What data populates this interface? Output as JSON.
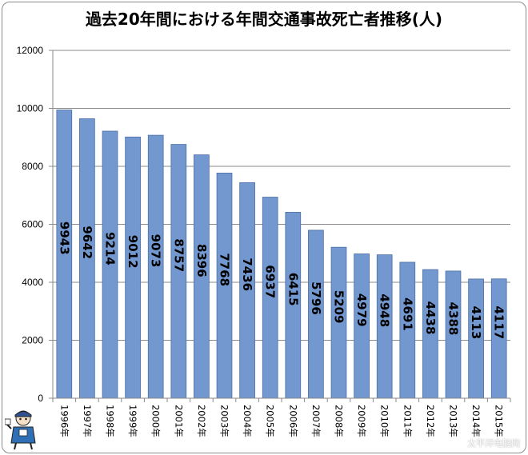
{
  "chart_data": {
    "type": "bar",
    "title": "過去20年間における年間交通事故死亡者推移(人)",
    "categories": [
      "1996年",
      "1997年",
      "1998年",
      "1999年",
      "2000年",
      "2001年",
      "2002年",
      "2003年",
      "2004年",
      "2005年",
      "2006年",
      "2007年",
      "2008年",
      "2009年",
      "2010年",
      "2011年",
      "2012年",
      "2013年",
      "2014年",
      "2015年"
    ],
    "values": [
      9943,
      9642,
      9214,
      9012,
      9073,
      8757,
      8396,
      7768,
      7436,
      6937,
      6415,
      5796,
      5209,
      4979,
      4948,
      4691,
      4438,
      4388,
      4113,
      4117
    ],
    "ylim": [
      0,
      12000
    ],
    "yticks": [
      0,
      2000,
      4000,
      6000,
      8000,
      10000,
      12000
    ],
    "grid": true,
    "legend": "none",
    "bar_color": "#7397cf",
    "bar_edge_color": "#4a6fa5"
  },
  "watermark": "太平洋电脑网"
}
